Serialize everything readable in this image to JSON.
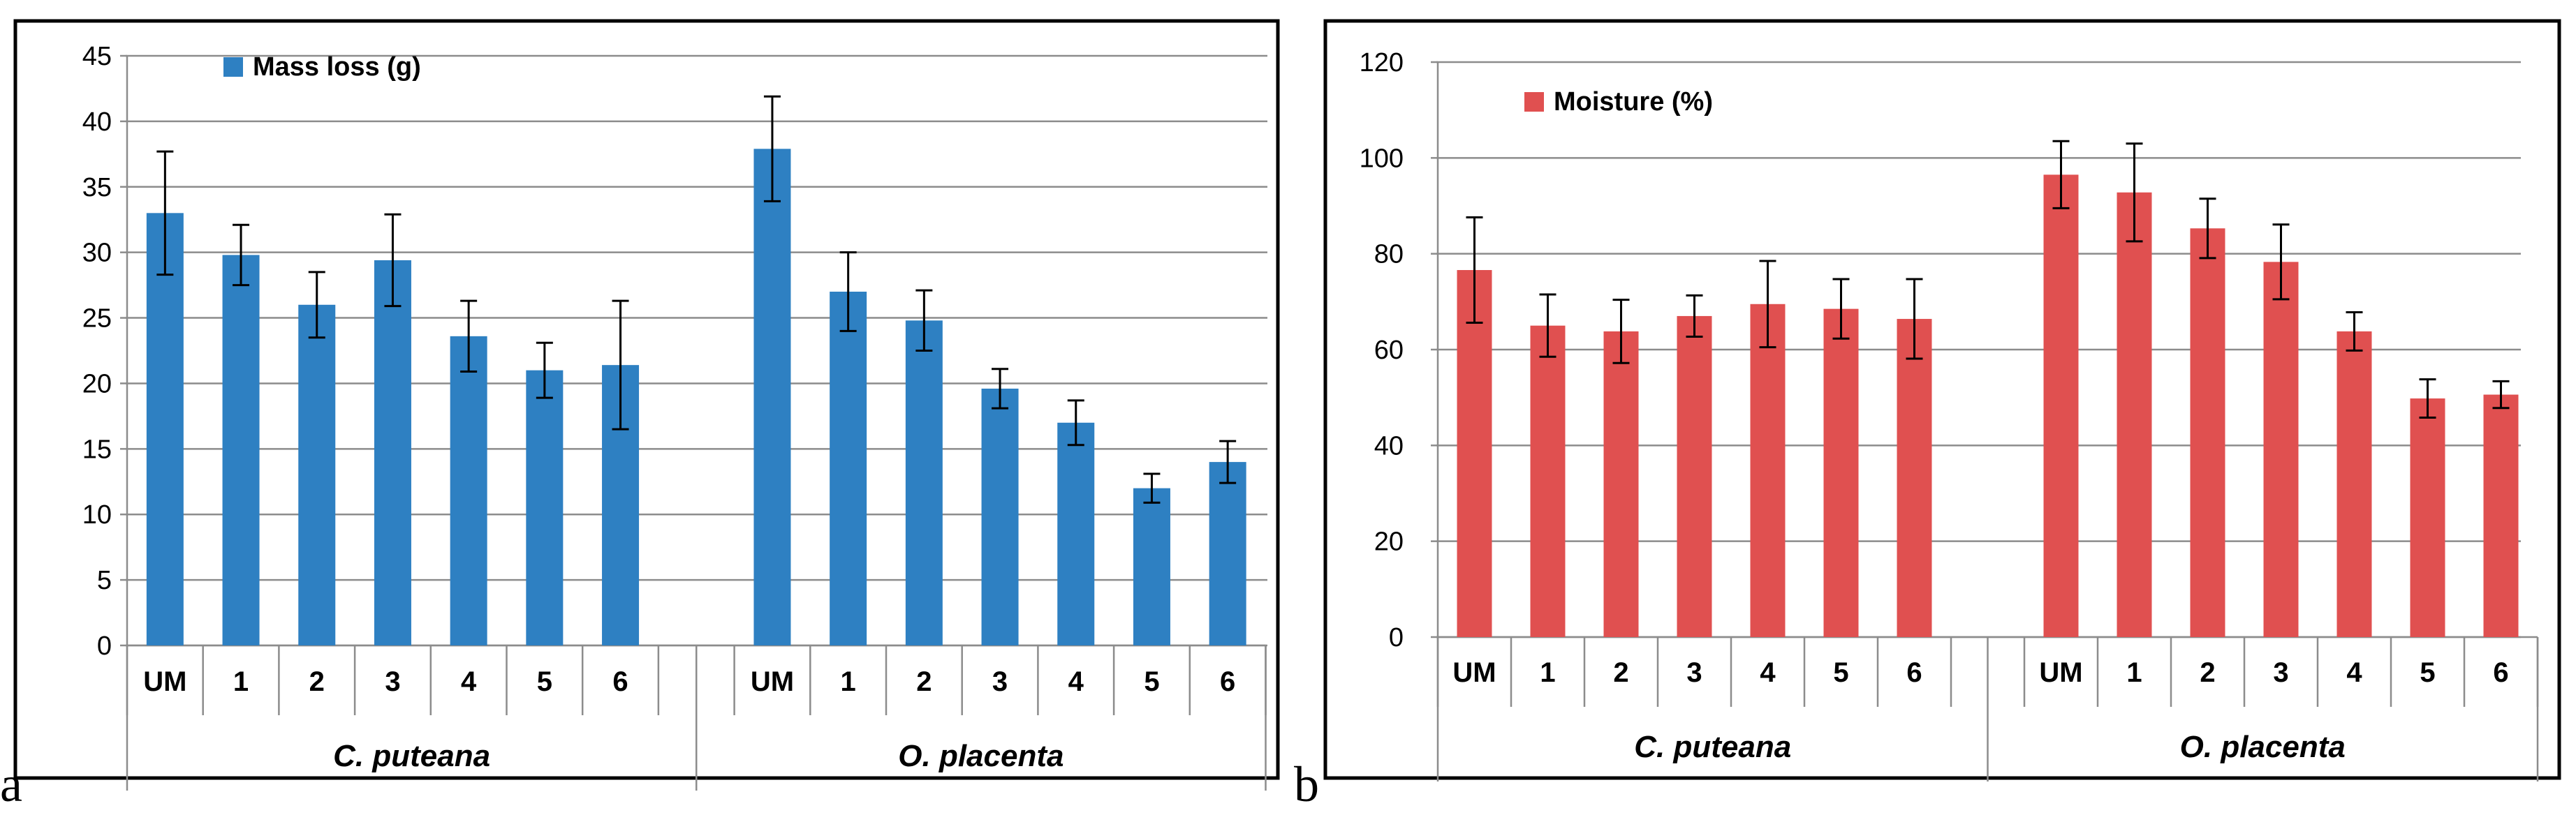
{
  "panels": [
    {
      "letter": "a"
    },
    {
      "letter": "b"
    }
  ],
  "chart_data": [
    {
      "type": "bar",
      "legend": "Mass loss (g)",
      "legend_position": "top-left",
      "color": "#2e80c2",
      "ylim": [
        0,
        45
      ],
      "yticks": [
        0,
        5,
        10,
        15,
        20,
        25,
        30,
        35,
        40,
        45
      ],
      "grid": true,
      "groups": [
        {
          "name": "C. puteana",
          "categories": [
            "UM",
            "1",
            "2",
            "3",
            "4",
            "5",
            "6"
          ],
          "values": [
            33.0,
            29.8,
            26.0,
            29.4,
            23.6,
            21.0,
            21.4
          ],
          "errors": [
            4.7,
            2.3,
            2.5,
            3.5,
            2.7,
            2.1,
            4.9
          ]
        },
        {
          "name": "O. placenta",
          "categories": [
            "UM",
            "1",
            "2",
            "3",
            "4",
            "5",
            "6"
          ],
          "values": [
            37.9,
            27.0,
            24.8,
            19.6,
            17.0,
            12.0,
            14.0
          ],
          "errors": [
            4.0,
            3.0,
            2.3,
            1.5,
            1.7,
            1.1,
            1.6
          ]
        }
      ]
    },
    {
      "type": "bar",
      "legend": "Moisture (%)",
      "legend_position": "top-left",
      "color": "#e05050",
      "ylim": [
        0,
        120
      ],
      "yticks": [
        0,
        20,
        40,
        60,
        80,
        100,
        120
      ],
      "grid": true,
      "groups": [
        {
          "name": "C. puteana",
          "categories": [
            "UM",
            "1",
            "2",
            "3",
            "4",
            "5",
            "6"
          ],
          "values": [
            76.6,
            65.0,
            63.8,
            67.0,
            69.5,
            68.5,
            66.4
          ],
          "errors": [
            11.0,
            6.5,
            6.6,
            4.3,
            9.0,
            6.2,
            8.3
          ]
        },
        {
          "name": "O. placenta",
          "categories": [
            "UM",
            "1",
            "2",
            "3",
            "4",
            "5",
            "6"
          ],
          "values": [
            96.5,
            92.8,
            85.3,
            78.3,
            63.8,
            49.8,
            50.6
          ],
          "errors": [
            7.0,
            10.2,
            6.2,
            7.8,
            4.0,
            4.0,
            2.8
          ]
        }
      ]
    }
  ]
}
